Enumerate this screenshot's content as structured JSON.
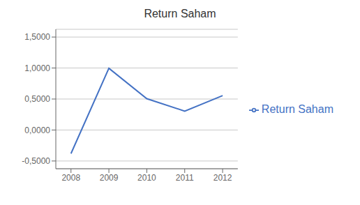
{
  "chart_data": {
    "type": "line",
    "title": "Return Saham",
    "x": [
      2008,
      2009,
      2010,
      2011,
      2012
    ],
    "series": [
      {
        "name": "Return Saham",
        "color": "#4472C4",
        "values": [
          -0.38,
          0.9967,
          0.505,
          0.305,
          0.555
        ]
      }
    ],
    "xlim": [
      2007.6,
      2012.4
    ],
    "xticks": [
      2008,
      2009,
      2010,
      2011,
      2012
    ],
    "ylim": [
      -0.625,
      1.625
    ],
    "yticks": [
      {
        "value": -0.5,
        "label": "-0,5000"
      },
      {
        "value": 0.0,
        "label": "0,0000"
      },
      {
        "value": 0.5,
        "label": "0,5000"
      },
      {
        "value": 1.0,
        "label": "1,0000"
      },
      {
        "value": 1.5,
        "label": "1,5000"
      }
    ],
    "grid": true,
    "legend": "right"
  }
}
